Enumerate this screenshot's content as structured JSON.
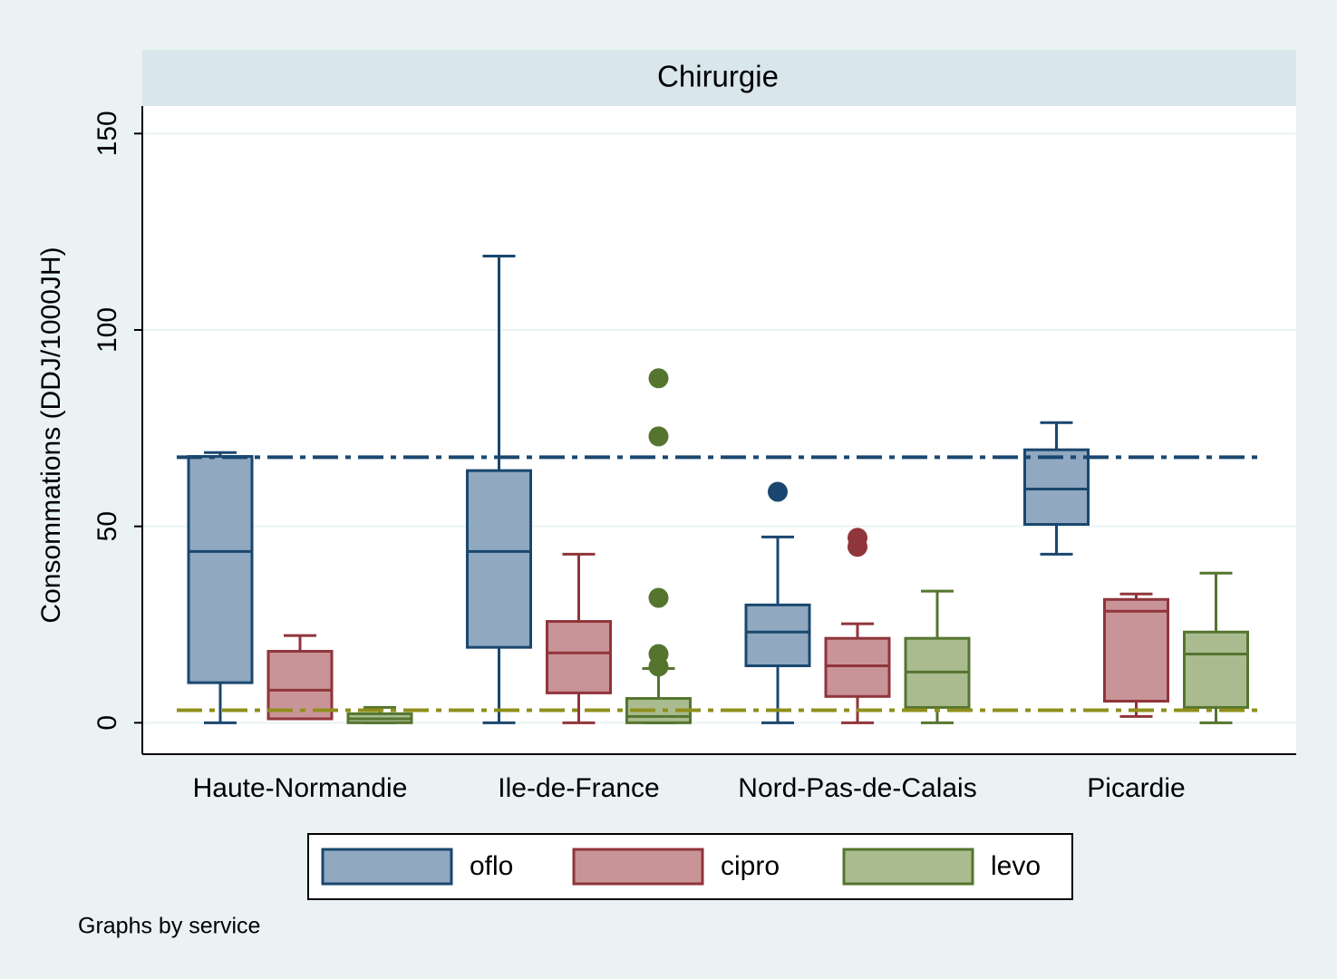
{
  "chart_data": {
    "type": "box",
    "panel_title": "Chirurgie",
    "y_label": "Consommations (DDJ/1000JH)",
    "note": "Graphs by service",
    "categories": [
      "Haute-Normandie",
      "Ile-de-France",
      "Nord-Pas-de-Calais",
      "Picardie"
    ],
    "ylim": [
      -8,
      157
    ],
    "yticks": [
      0,
      50,
      100,
      150
    ],
    "grid": true,
    "series": [
      {
        "name": "oflo",
        "color": "#1a476f",
        "fill": "#90a8c0",
        "values": [
          {
            "min": 0,
            "q1": 10.2,
            "median": 43.6,
            "q3": 67.8,
            "max": 68.8,
            "outliers": []
          },
          {
            "min": 0,
            "q1": 19.2,
            "median": 43.6,
            "q3": 64.2,
            "max": 118.8,
            "outliers": []
          },
          {
            "min": 0,
            "q1": 14.5,
            "median": 23.1,
            "q3": 30,
            "max": 47.3,
            "outliers": [
              58.8
            ]
          },
          {
            "min": 42.9,
            "q1": 50.5,
            "median": 59.5,
            "q3": 69.5,
            "max": 76.4,
            "outliers": []
          }
        ]
      },
      {
        "name": "cipro",
        "color": "#90353b",
        "fill": "#c99497",
        "values": [
          {
            "min": 1,
            "q1": 1,
            "median": 8.3,
            "q3": 18.2,
            "max": 22.2,
            "outliers": []
          },
          {
            "min": 0,
            "q1": 7.6,
            "median": 17.8,
            "q3": 25.8,
            "max": 42.9,
            "outliers": []
          },
          {
            "min": 0,
            "q1": 6.7,
            "median": 14.5,
            "q3": 21.5,
            "max": 25.2,
            "outliers": [
              47.1,
              44.8
            ]
          },
          {
            "min": 1.6,
            "q1": 5.5,
            "median": 28.4,
            "q3": 31.4,
            "max": 32.8,
            "outliers": []
          }
        ]
      },
      {
        "name": "levo",
        "color": "#55752f",
        "fill": "#aabb90",
        "values": [
          {
            "min": 0,
            "q1": 0,
            "median": 1,
            "q3": 2.3,
            "max": 3.9,
            "outliers": []
          },
          {
            "min": 0,
            "q1": 0,
            "median": 1.6,
            "q3": 6.2,
            "max": 13.8,
            "outliers": [
              87.7,
              72.9,
              31.8,
              17.5,
              14.3
            ]
          },
          {
            "min": 0,
            "q1": 3.9,
            "median": 12.9,
            "q3": 21.5,
            "max": 33.5,
            "outliers": []
          },
          {
            "min": 0,
            "q1": 3.9,
            "median": 17.5,
            "q3": 23.1,
            "max": 38.1,
            "outliers": []
          }
        ]
      }
    ],
    "reference_lines": [
      {
        "value": 67.6,
        "color": "#1a476f"
      },
      {
        "value": 3.2,
        "color": "#8f8f1c"
      }
    ]
  }
}
